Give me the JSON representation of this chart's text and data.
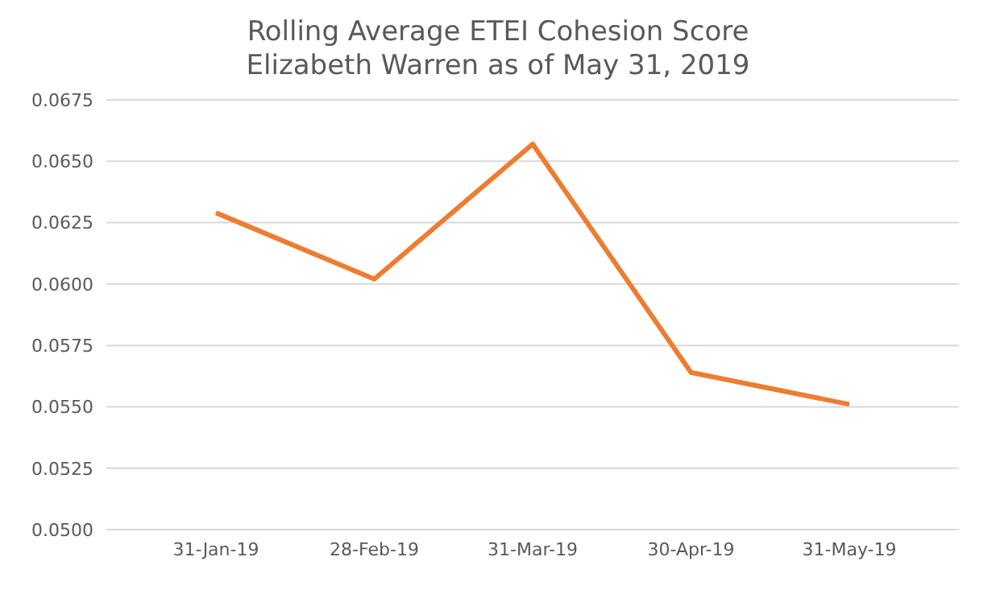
{
  "chart_data": {
    "type": "line",
    "title": "Rolling Average ETEI Cohesion Score\nElizabeth Warren as of May 31, 2019",
    "categories": [
      "31-Jan-19",
      "28-Feb-19",
      "31-Mar-19",
      "30-Apr-19",
      "31-May-19"
    ],
    "series": [
      {
        "color": "#ed7d31",
        "values": [
          0.0629,
          0.0602,
          0.0657,
          0.0564,
          0.0551
        ]
      }
    ],
    "ylim": [
      0.05,
      0.0675
    ],
    "yticks": [
      {
        "value": 0.05,
        "label": "0.0500"
      },
      {
        "value": 0.0525,
        "label": "0.0525"
      },
      {
        "value": 0.055,
        "label": "0.0550"
      },
      {
        "value": 0.0575,
        "label": "0.0575"
      },
      {
        "value": 0.06,
        "label": "0.0600"
      },
      {
        "value": 0.0625,
        "label": "0.0625"
      },
      {
        "value": 0.065,
        "label": "0.0650"
      },
      {
        "value": 0.0675,
        "label": "0.0675"
      }
    ],
    "grid": "y",
    "marker": "none",
    "line_style": "solid",
    "legend": false
  }
}
